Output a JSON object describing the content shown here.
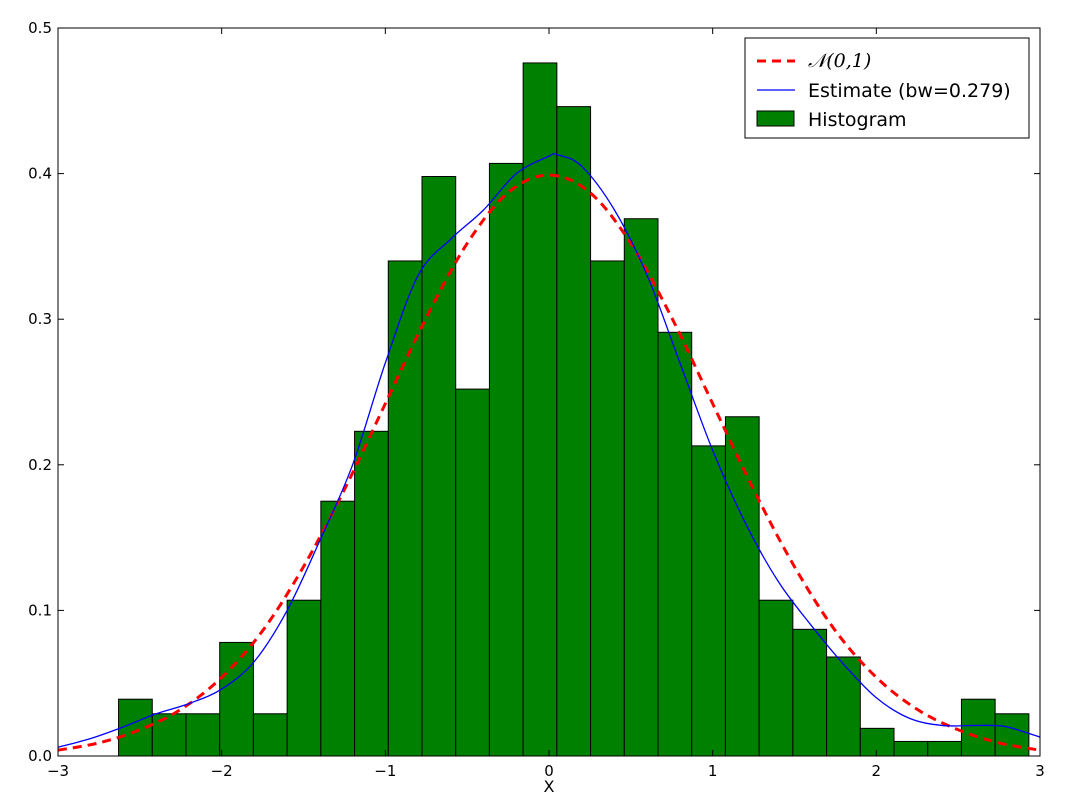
{
  "chart_data": {
    "type": "bar",
    "xlabel": "X",
    "ylabel": "",
    "xlim": [
      -3,
      3
    ],
    "ylim": [
      0,
      0.5
    ],
    "xticks": [
      -3,
      -2,
      -1,
      0,
      1,
      2,
      3
    ],
    "xtick_labels": [
      "−3",
      "−2",
      "−1",
      "0",
      "1",
      "2",
      "3"
    ],
    "yticks": [
      0.0,
      0.1,
      0.2,
      0.3,
      0.4,
      0.5
    ],
    "ytick_labels": [
      "0.0",
      "0.1",
      "0.2",
      "0.3",
      "0.4",
      "0.5"
    ],
    "grid": false,
    "legend_position": "top-right",
    "histogram": {
      "name": "Histogram",
      "color": "#008000",
      "bin_edges": [
        -2.63,
        -2.424,
        -2.218,
        -2.012,
        -1.806,
        -1.6,
        -1.394,
        -1.188,
        -0.982,
        -0.776,
        -0.57,
        -0.364,
        -0.158,
        0.048,
        0.254,
        0.46,
        0.666,
        0.872,
        1.078,
        1.284,
        1.49,
        1.696,
        1.902,
        2.108,
        2.314,
        2.52,
        2.726,
        2.932
      ],
      "heights": [
        0.039,
        0.029,
        0.029,
        0.078,
        0.029,
        0.107,
        0.175,
        0.223,
        0.34,
        0.398,
        0.252,
        0.407,
        0.476,
        0.446,
        0.34,
        0.369,
        0.291,
        0.213,
        0.233,
        0.107,
        0.087,
        0.068,
        0.019,
        0.01,
        0.01,
        0.039,
        0.029
      ]
    },
    "series": [
      {
        "name": "𝒩(0,1)",
        "color": "#ff0000",
        "style": "dashed",
        "x": [
          -3.0,
          -2.75,
          -2.5,
          -2.25,
          -2.0,
          -1.75,
          -1.5,
          -1.25,
          -1.0,
          -0.75,
          -0.5,
          -0.25,
          0.0,
          0.25,
          0.5,
          0.75,
          1.0,
          1.25,
          1.5,
          1.75,
          2.0,
          2.25,
          2.5,
          2.75,
          3.0
        ],
        "y": [
          0.004,
          0.009,
          0.018,
          0.032,
          0.054,
          0.086,
          0.13,
          0.183,
          0.242,
          0.301,
          0.352,
          0.387,
          0.399,
          0.387,
          0.352,
          0.301,
          0.242,
          0.183,
          0.13,
          0.086,
          0.054,
          0.032,
          0.018,
          0.009,
          0.004
        ]
      },
      {
        "name": "Estimate (bw=0.279)",
        "color": "#0000ff",
        "style": "solid",
        "x": [
          -3.0,
          -2.8,
          -2.6,
          -2.4,
          -2.2,
          -2.0,
          -1.8,
          -1.6,
          -1.4,
          -1.2,
          -1.0,
          -0.8,
          -0.6,
          -0.4,
          -0.2,
          0.0,
          0.05,
          0.2,
          0.4,
          0.6,
          0.8,
          1.0,
          1.2,
          1.4,
          1.6,
          1.8,
          2.0,
          2.2,
          2.4,
          2.6,
          2.7,
          2.8,
          3.0
        ],
        "y": [
          0.006,
          0.012,
          0.02,
          0.029,
          0.036,
          0.046,
          0.065,
          0.1,
          0.148,
          0.2,
          0.27,
          0.33,
          0.355,
          0.375,
          0.4,
          0.412,
          0.413,
          0.405,
          0.375,
          0.33,
          0.27,
          0.21,
          0.16,
          0.12,
          0.09,
          0.063,
          0.04,
          0.026,
          0.021,
          0.021,
          0.021,
          0.02,
          0.013
        ]
      }
    ]
  }
}
